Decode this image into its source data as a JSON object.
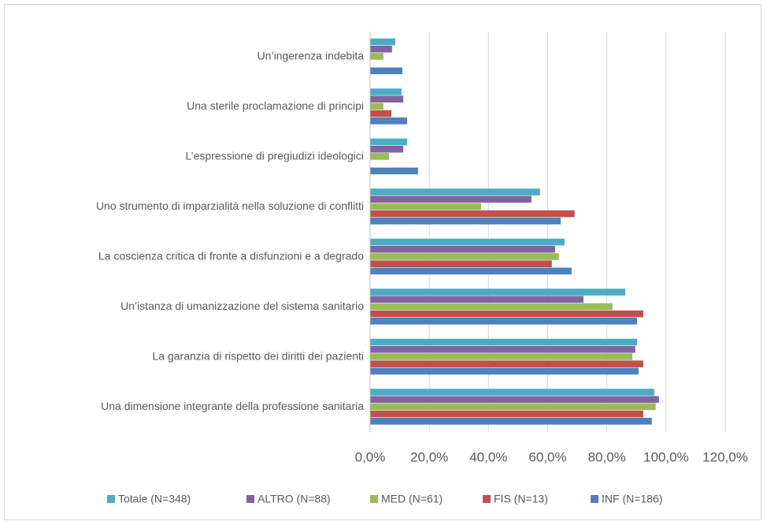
{
  "chart_data": {
    "type": "bar",
    "orientation": "horizontal",
    "categories": [
      "Un’ingerenza indebita",
      "Una sterile proclamazione di principi",
      "L’espressione di pregiudizi ideologici",
      "Uno strumento di imparzialità nella soluzione di conflitti",
      "La coscienza critica di fronte a disfunzioni e a degrado",
      "Un’istanza di umanizzazione del sistema sanitario",
      "La garanzia di rispetto dei diritti dei pazienti",
      "Una dimensione integrante della professione sanitaria"
    ],
    "series": [
      {
        "name": "Totale (N=348)",
        "color": "#4bacc6",
        "values": [
          8.5,
          10.6,
          12.5,
          57.4,
          65.7,
          86.2,
          90.2,
          96.0
        ]
      },
      {
        "name": "ALTRO (N=88)",
        "color": "#8064a2",
        "values": [
          7.4,
          11.2,
          11.2,
          54.5,
          62.5,
          72.1,
          89.6,
          97.6
        ]
      },
      {
        "name": "MED (N=61)",
        "color": "#9bbb59",
        "values": [
          4.5,
          4.5,
          6.4,
          37.5,
          63.8,
          81.9,
          88.6,
          96.5
        ]
      },
      {
        "name": "FIS (N=13)",
        "color": "#c0504d",
        "values": [
          0,
          7.2,
          0,
          69.1,
          61.4,
          92.3,
          92.3,
          92.3
        ]
      },
      {
        "name": "INF (N=186)",
        "color": "#4f81bd",
        "values": [
          10.9,
          12.5,
          16.2,
          64.4,
          68.1,
          90.2,
          90.7,
          95.2
        ]
      }
    ],
    "xlim": [
      0,
      120
    ],
    "xticks": [
      {
        "value": 0,
        "label": "0,0%"
      },
      {
        "value": 20,
        "label": "20,0%"
      },
      {
        "value": 40,
        "label": "40,0%"
      },
      {
        "value": 60,
        "label": "60,0%"
      },
      {
        "value": 80,
        "label": "80,0%"
      },
      {
        "value": 100,
        "label": "100,0%"
      },
      {
        "value": 120,
        "label": "120,0%"
      }
    ],
    "grid": true,
    "legend": "bottom"
  }
}
